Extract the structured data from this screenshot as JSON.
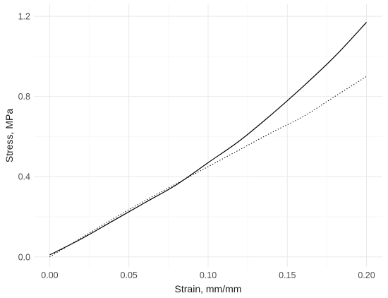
{
  "chart_data": {
    "type": "line",
    "title": "",
    "xlabel": "Strain, mm/mm",
    "ylabel": "Stress, MPa",
    "xlim": [
      -0.01,
      0.21
    ],
    "ylim": [
      -0.05,
      1.26
    ],
    "x_ticks": [
      {
        "value": 0.0,
        "label": "0.00"
      },
      {
        "value": 0.05,
        "label": "0.05"
      },
      {
        "value": 0.1,
        "label": "0.10"
      },
      {
        "value": 0.15,
        "label": "0.15"
      },
      {
        "value": 0.2,
        "label": "0.20"
      }
    ],
    "y_ticks": [
      {
        "value": 0.0,
        "label": "0.0"
      },
      {
        "value": 0.4,
        "label": "0.4"
      },
      {
        "value": 0.8,
        "label": "0.8"
      },
      {
        "value": 1.2,
        "label": "1.2"
      }
    ],
    "grid": true,
    "legend": "none",
    "series": [
      {
        "style": "solid",
        "color": "#000000",
        "x": [
          0.0,
          0.02,
          0.04,
          0.06,
          0.08,
          0.1,
          0.12,
          0.14,
          0.16,
          0.18,
          0.2
        ],
        "y": [
          0.01,
          0.09,
          0.18,
          0.27,
          0.36,
          0.47,
          0.58,
          0.71,
          0.85,
          1.0,
          1.17
        ]
      },
      {
        "style": "dotted",
        "color": "#000000",
        "x": [
          0.0,
          0.02,
          0.04,
          0.06,
          0.08,
          0.1,
          0.12,
          0.14,
          0.16,
          0.18,
          0.2
        ],
        "y": [
          0.0,
          0.095,
          0.19,
          0.28,
          0.365,
          0.45,
          0.535,
          0.62,
          0.7,
          0.8,
          0.9
        ]
      }
    ]
  }
}
